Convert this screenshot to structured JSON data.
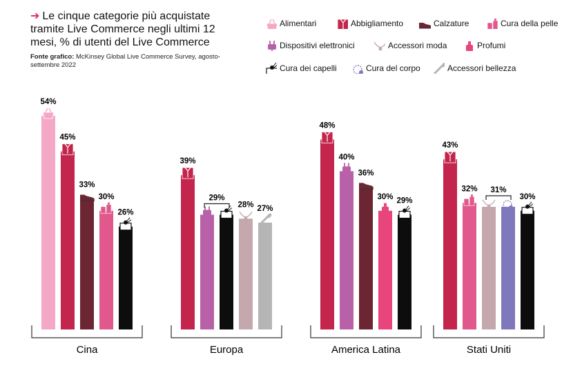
{
  "title_arrow": "➔",
  "title_lines": [
    "Le cinque categorie più acquistate",
    "tramite Live Commerce negli ultimi 12",
    "mesi, % di utenti del Live Commerce"
  ],
  "source_label": "Fonte grafico:",
  "source_text": " McKinsey Global Live Commerce Survey, agosto-settembre 2022",
  "chart_data": {
    "type": "bar",
    "categories": [
      "Alimentari",
      "Abbigliamento",
      "Calzature",
      "Cura della pelle",
      "Dispositivi elettronici",
      "Accessori moda",
      "Profumi",
      "Cura dei capelli",
      "Cura del corpo",
      "Accessori bellezza"
    ],
    "colors": {
      "Alimentari": "#f4a8c6",
      "Abbigliamento": "#c3254c",
      "Calzature": "#6b2533",
      "Cura della pelle": "#e0588c",
      "Dispositivi elettronici": "#b861a8",
      "Accessori moda": "#c4a8ae",
      "Profumi": "#e8457d",
      "Cura dei capelli": "#0d0d0d",
      "Cura del corpo": "#7f78bc",
      "Accessori bellezza": "#b5b5b5"
    },
    "groups": [
      {
        "name": "Cina",
        "bars": [
          {
            "category": "Alimentari",
            "value": 54,
            "label": "54%",
            "icon": "grocery-basket-icon"
          },
          {
            "category": "Abbigliamento",
            "value": 45,
            "label": "45%",
            "icon": "shirt-icon"
          },
          {
            "category": "Calzature",
            "value": 33,
            "label": "33%",
            "icon": "shoe-icon"
          },
          {
            "category": "Cura della pelle",
            "value": 30,
            "label": "30%",
            "icon": "skincare-bottles-icon"
          },
          {
            "category": "Cura dei capelli",
            "value": 26,
            "label": "26%",
            "icon": "hair-care-icon"
          }
        ]
      },
      {
        "name": "Europa",
        "bars": [
          {
            "category": "Abbigliamento",
            "value": 39,
            "label": "39%",
            "icon": "shirt-icon"
          },
          {
            "category": "Dispositivi elettronici",
            "value": 29,
            "label": "",
            "icon": "plug-icon"
          },
          {
            "category": "Cura dei capelli",
            "value": 29,
            "label": "",
            "icon": "hair-care-icon"
          },
          {
            "category": "Accessori moda",
            "value": 28,
            "label": "28%",
            "icon": "necklace-icon"
          },
          {
            "category": "Accessori bellezza",
            "value": 27,
            "label": "27%",
            "icon": "makeup-brush-icon"
          }
        ],
        "brackets": [
          {
            "from": 1,
            "to": 2,
            "label": "29%"
          }
        ]
      },
      {
        "name": "America Latina",
        "bars": [
          {
            "category": "Abbigliamento",
            "value": 48,
            "label": "48%",
            "icon": "shirt-icon"
          },
          {
            "category": "Dispositivi elettronici",
            "value": 40,
            "label": "40%",
            "icon": "plug-icon"
          },
          {
            "category": "Calzature",
            "value": 36,
            "label": "36%",
            "icon": "shoe-icon"
          },
          {
            "category": "Profumi",
            "value": 30,
            "label": "30%",
            "icon": "perfume-icon"
          },
          {
            "category": "Cura dei capelli",
            "value": 29,
            "label": "29%",
            "icon": "hair-care-icon"
          }
        ]
      },
      {
        "name": "Stati Uniti",
        "bars": [
          {
            "category": "Abbigliamento",
            "value": 43,
            "label": "43%",
            "icon": "shirt-icon"
          },
          {
            "category": "Cura della pelle",
            "value": 32,
            "label": "32%",
            "icon": "skincare-bottles-icon"
          },
          {
            "category": "Accessori moda",
            "value": 31,
            "label": "",
            "icon": "necklace-icon"
          },
          {
            "category": "Cura del corpo",
            "value": 31,
            "label": "",
            "icon": "body-care-icon"
          },
          {
            "category": "Cura dei capelli",
            "value": 30,
            "label": "30%",
            "icon": "hair-care-icon"
          }
        ],
        "brackets": [
          {
            "from": 2,
            "to": 3,
            "label": "31%"
          }
        ]
      }
    ],
    "ylim": [
      0,
      60
    ],
    "legend_position": "top-right",
    "grid": false
  }
}
